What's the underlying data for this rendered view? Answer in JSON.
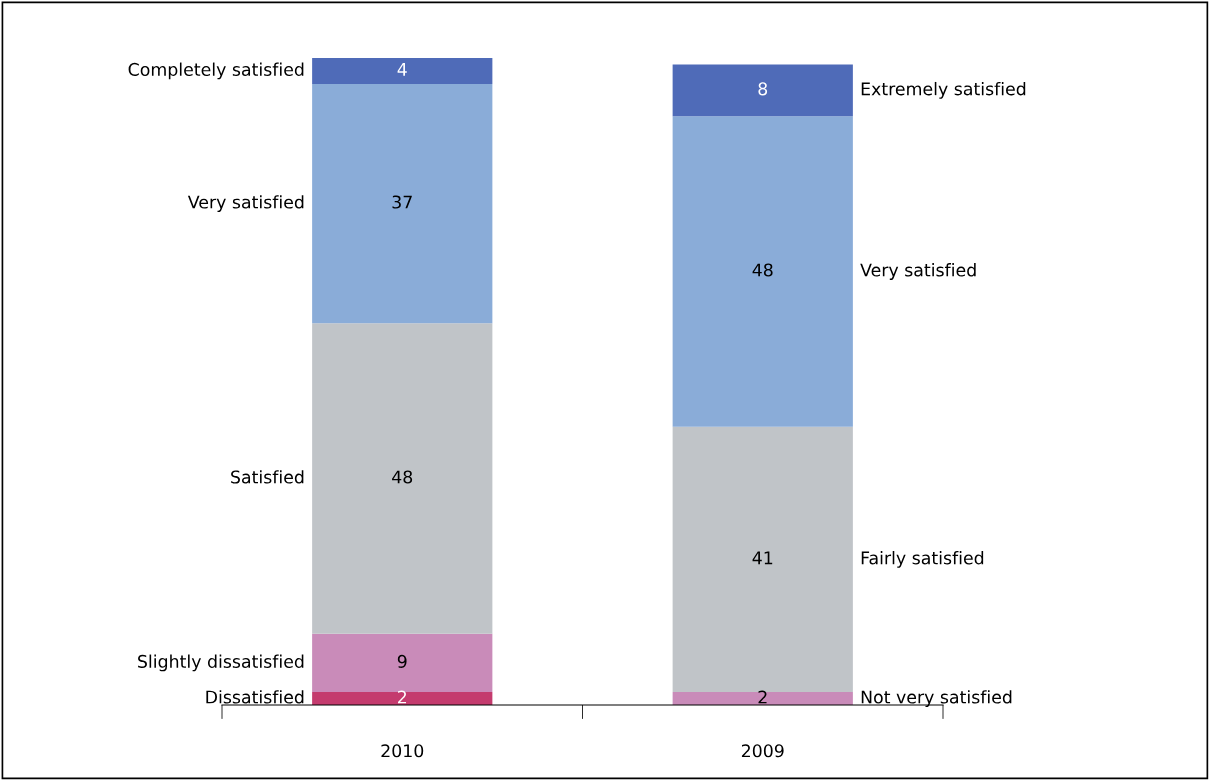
{
  "chart_data": {
    "type": "bar",
    "stacked": true,
    "categories": [
      "2010",
      "2009"
    ],
    "data_labels": true,
    "legend": false,
    "grid": false,
    "series": [
      {
        "name": "Dissatisfied",
        "color": "#c43b6e",
        "values": [
          2,
          null
        ]
      },
      {
        "name": "Slightly dissatisfied",
        "color": "#c98bb9",
        "values": [
          9,
          null
        ]
      },
      {
        "name": "Satisfied",
        "color": "#c0c4c8",
        "values": [
          48,
          null
        ]
      },
      {
        "name": "Very satisfied",
        "color": "#8aacd8",
        "values": [
          37,
          null
        ]
      },
      {
        "name": "Completely satisfied",
        "color": "#4f6bb8",
        "values": [
          4,
          null
        ]
      },
      {
        "name": "Not very satisfied",
        "color": "#c98bb9",
        "values": [
          null,
          2
        ]
      },
      {
        "name": "Fairly satisfied",
        "color": "#c0c4c8",
        "values": [
          null,
          41
        ]
      },
      {
        "name": "Very satisfied",
        "color": "#8aacd8",
        "values": [
          null,
          48
        ]
      },
      {
        "name": "Extremely satisfied",
        "color": "#4f6bb8",
        "values": [
          null,
          8
        ]
      }
    ]
  }
}
